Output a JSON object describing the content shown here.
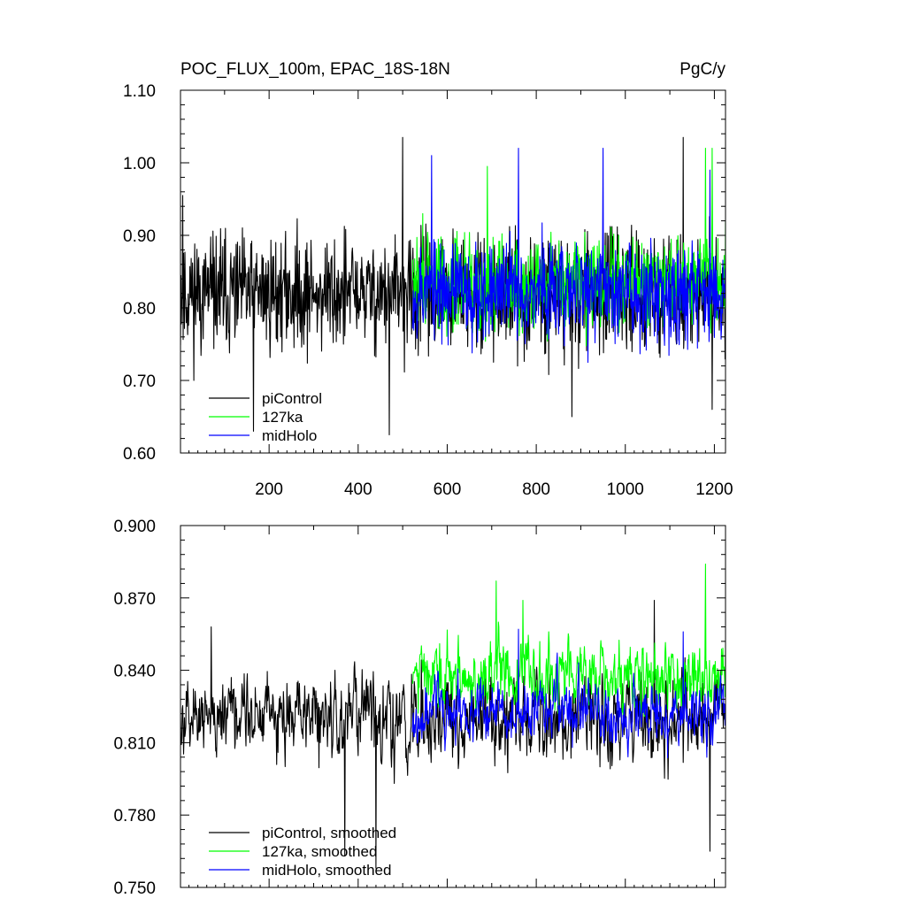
{
  "chart_data": [
    {
      "type": "line",
      "title": "POC_FLUX_100m, EPAC_18S-18N",
      "units": "PgC/y",
      "xlabel": "",
      "ylabel": "",
      "xlim": [
        1,
        1225
      ],
      "ylim": [
        0.6,
        1.1
      ],
      "x_ticks": [
        "200",
        "400",
        "600",
        "800",
        "1000",
        "1200"
      ],
      "y_ticks": [
        "0.60",
        "0.70",
        "0.80",
        "0.90",
        "1.00",
        "1.10"
      ],
      "grid": false,
      "legend_position": "bottom-left",
      "series": [
        {
          "name": "piControl",
          "color": "#000000",
          "x_range": [
            1,
            1225
          ],
          "mean": 0.82,
          "stats": {
            "min": 0.63,
            "max": 1.035
          },
          "approx_peaks": [
            [
              6,
              0.955
            ],
            [
              165,
              0.63
            ],
            [
              470,
              0.625
            ],
            [
              500,
              1.035
            ],
            [
              880,
              0.65
            ],
            [
              1130,
              1.035
            ],
            [
              1195,
              0.66
            ]
          ]
        },
        {
          "name": "127ka",
          "color": "#00ff00",
          "x_range": [
            522,
            1225
          ],
          "mean": 0.835,
          "stats": {
            "min": 0.69,
            "max": 1.02
          },
          "approx_peaks": [
            [
              545,
              0.93
            ],
            [
              690,
              0.995
            ],
            [
              1180,
              1.02
            ],
            [
              1195,
              1.02
            ]
          ]
        },
        {
          "name": "midHolo",
          "color": "#0000ff",
          "x_range": [
            522,
            1225
          ],
          "mean": 0.825,
          "stats": {
            "min": 0.67,
            "max": 1.02
          },
          "approx_peaks": [
            [
              565,
              1.01
            ],
            [
              760,
              1.02
            ],
            [
              950,
              1.02
            ],
            [
              1190,
              0.99
            ]
          ]
        }
      ]
    },
    {
      "type": "line",
      "title": "",
      "xlabel": "",
      "ylabel": "",
      "xlim": [
        1,
        1225
      ],
      "ylim": [
        0.75,
        0.9
      ],
      "y_ticks": [
        "0.750",
        "0.780",
        "0.810",
        "0.840",
        "0.870",
        "0.900"
      ],
      "grid": false,
      "legend_position": "bottom-left",
      "series": [
        {
          "name": "piControl, smoothed",
          "color": "#000000",
          "x_range": [
            1,
            1225
          ],
          "mean": 0.82,
          "stats": {
            "min": 0.758,
            "max": 0.869
          },
          "approx_peaks": [
            [
              70,
              0.858
            ],
            [
              370,
              0.763
            ],
            [
              440,
              0.758
            ],
            [
              1065,
              0.869
            ],
            [
              1190,
              0.765
            ]
          ]
        },
        {
          "name": "127ka, smoothed",
          "color": "#00ff00",
          "x_range": [
            522,
            1225
          ],
          "mean": 0.838,
          "stats": {
            "min": 0.79,
            "max": 0.884
          },
          "approx_peaks": [
            [
              710,
              0.877
            ],
            [
              770,
              0.869
            ],
            [
              1180,
              0.884
            ]
          ]
        },
        {
          "name": "midHolo, smoothed",
          "color": "#0000ff",
          "x_range": [
            522,
            1225
          ],
          "mean": 0.822,
          "stats": {
            "min": 0.78,
            "max": 0.86
          },
          "approx_peaks": [
            [
              760,
              0.857
            ],
            [
              1130,
              0.856
            ]
          ]
        }
      ]
    }
  ]
}
